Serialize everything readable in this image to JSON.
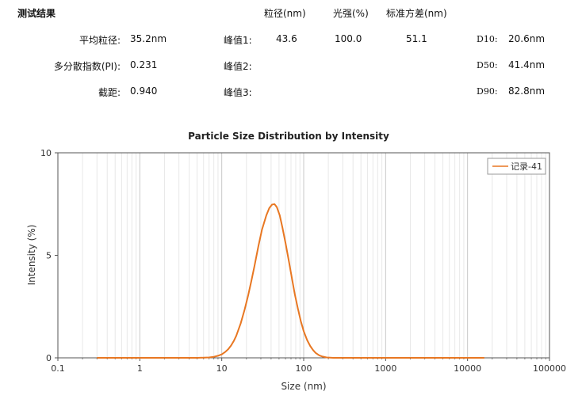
{
  "header": {
    "section_title": "测试结果",
    "col_size": "粒径(nm)",
    "col_intensity": "光强(%)",
    "col_std": "标准方差(nm)",
    "avg_label": "平均粒径:",
    "avg_value": "35.2nm",
    "pdi_label": "多分散指数(PI):",
    "pdi_value": "0.231",
    "intercept_label": "截距:",
    "intercept_value": "0.940",
    "peak1_label": "峰值1:",
    "peak1_size": "43.6",
    "peak1_intensity": "100.0",
    "peak1_std": "51.1",
    "peak2_label": "峰值2:",
    "peak3_label": "峰值3:",
    "d10_label": "D10:",
    "d10_value": "20.6nm",
    "d50_label": "D50:",
    "d50_value": "41.4nm",
    "d90_label": "D90:",
    "d90_value": "82.8nm"
  },
  "chart_data": {
    "type": "line",
    "title": "Particle Size Distribution by Intensity",
    "xlabel": "Size (nm)",
    "ylabel": "Intensity (%)",
    "x_scale": "log",
    "xlim": [
      0.1,
      100000
    ],
    "ylim": [
      0,
      10
    ],
    "x_ticks": [
      0.1,
      1,
      10,
      100,
      1000,
      10000,
      100000
    ],
    "x_tick_labels": [
      "0.1",
      "1",
      "10",
      "100",
      "1000",
      "10000",
      "100000"
    ],
    "y_ticks": [
      0,
      5,
      10
    ],
    "y_tick_labels": [
      "0",
      "5",
      "10"
    ],
    "grid": "vertical minor and major",
    "legend_position": "top-right",
    "color": "#e87722",
    "series": [
      {
        "name": "记录-41",
        "x": [
          0.3,
          1,
          3,
          5,
          7,
          8,
          9,
          10,
          11,
          12,
          13,
          14,
          15,
          17,
          19,
          21,
          23,
          25,
          28,
          31,
          35,
          38,
          41,
          44,
          47,
          51,
          55,
          60,
          66,
          72,
          78,
          85,
          92,
          100,
          110,
          120,
          130,
          140,
          155,
          170,
          190,
          210,
          230,
          260,
          300,
          400,
          1000,
          10000,
          16000
        ],
        "y": [
          0,
          0,
          0,
          0,
          0.02,
          0.05,
          0.1,
          0.17,
          0.28,
          0.42,
          0.6,
          0.82,
          1.07,
          1.67,
          2.35,
          3.05,
          3.75,
          4.45,
          5.45,
          6.25,
          6.95,
          7.3,
          7.47,
          7.5,
          7.35,
          6.95,
          6.35,
          5.6,
          4.7,
          3.85,
          3.1,
          2.4,
          1.8,
          1.3,
          0.87,
          0.58,
          0.38,
          0.24,
          0.12,
          0.06,
          0.02,
          0.01,
          0,
          0,
          0,
          0,
          0,
          0,
          0
        ]
      }
    ]
  }
}
